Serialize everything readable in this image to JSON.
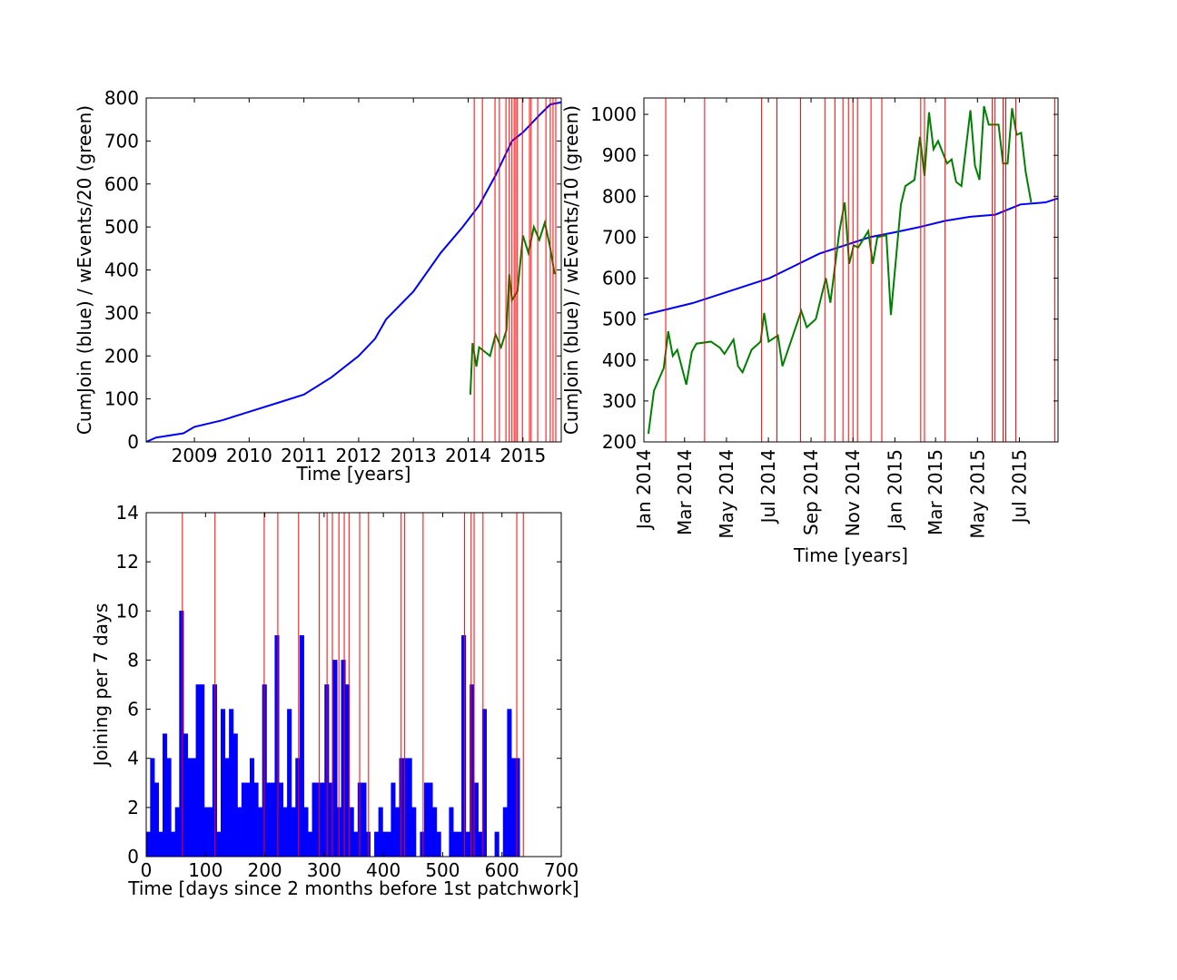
{
  "chart_data": [
    {
      "type": "line",
      "xlabel": "Time [years]",
      "ylabel": "CumJoin (blue) / wEvents/20 (green)",
      "xlim": [
        2008.12,
        2015.7
      ],
      "ylim": [
        0,
        800
      ],
      "xticks": [
        2009,
        2010,
        2011,
        2012,
        2013,
        2014,
        2015
      ],
      "yticks": [
        0,
        100,
        200,
        300,
        400,
        500,
        600,
        700,
        800
      ],
      "series": [
        {
          "color": "#0000ff",
          "x": [
            2008.12,
            2008.3,
            2008.8,
            2009,
            2009.5,
            2010,
            2010.5,
            2011,
            2011.5,
            2012,
            2012.3,
            2012.5,
            2013,
            2013.5,
            2013.9,
            2014.2,
            2014.5,
            2014.8,
            2015,
            2015.3,
            2015.5,
            2015.7
          ],
          "values": [
            0,
            10,
            20,
            35,
            50,
            70,
            90,
            110,
            150,
            200,
            240,
            285,
            350,
            440,
            500,
            550,
            620,
            700,
            720,
            760,
            785,
            790
          ]
        },
        {
          "color": "#008000",
          "x": [
            2014.04,
            2014.08,
            2014.15,
            2014.2,
            2014.3,
            2014.4,
            2014.5,
            2014.6,
            2014.7,
            2014.75,
            2014.8,
            2014.9,
            2015.0,
            2015.1,
            2015.2,
            2015.3,
            2015.4,
            2015.5,
            2015.58
          ],
          "values": [
            110,
            230,
            175,
            220,
            210,
            200,
            250,
            220,
            260,
            390,
            330,
            350,
            480,
            440,
            500,
            470,
            510,
            450,
            390
          ]
        }
      ],
      "vlines": {
        "color": "#ff0000",
        "x": [
          2014.11,
          2014.26,
          2014.49,
          2014.57,
          2014.69,
          2014.75,
          2014.8,
          2014.84,
          2014.87,
          2014.9,
          2014.99,
          2015.12,
          2015.15,
          2015.27,
          2015.42,
          2015.5,
          2015.55,
          2015.6
        ]
      }
    },
    {
      "type": "line",
      "xlabel": "Time [years]",
      "ylabel": "CumJoin (blue) / wEvents/10 (green)",
      "xlim": [
        2014.0,
        2015.65
      ],
      "ylim": [
        200,
        1040
      ],
      "xtick_rotation": 90,
      "xticks": [
        {
          "value": 2014.0,
          "label": "Jan 2014"
        },
        {
          "value": 2014.162,
          "label": "Mar 2014"
        },
        {
          "value": 2014.329,
          "label": "May 2014"
        },
        {
          "value": 2014.496,
          "label": "Jul 2014"
        },
        {
          "value": 2014.666,
          "label": "Sep 2014"
        },
        {
          "value": 2014.833,
          "label": "Nov 2014"
        },
        {
          "value": 2015.0,
          "label": "Jan 2015"
        },
        {
          "value": 2015.162,
          "label": "Mar 2015"
        },
        {
          "value": 2015.329,
          "label": "May 2015"
        },
        {
          "value": 2015.496,
          "label": "Jul 2015"
        }
      ],
      "yticks": [
        200,
        300,
        400,
        500,
        600,
        700,
        800,
        900,
        1000
      ],
      "series": [
        {
          "color": "#0000ff",
          "x": [
            2014.0,
            2014.1,
            2014.2,
            2014.3,
            2014.4,
            2014.5,
            2014.6,
            2014.7,
            2014.8,
            2014.9,
            2015.0,
            2015.1,
            2015.2,
            2015.3,
            2015.4,
            2015.5,
            2015.6,
            2015.65
          ],
          "values": [
            510,
            525,
            540,
            560,
            580,
            600,
            630,
            660,
            680,
            700,
            712,
            725,
            740,
            750,
            755,
            780,
            785,
            795
          ]
        },
        {
          "color": "#008000",
          "x": [
            2014.018,
            2014.04,
            2014.079,
            2014.097,
            2014.115,
            2014.133,
            2014.169,
            2014.191,
            2014.209,
            2014.267,
            2014.303,
            2014.321,
            2014.357,
            2014.375,
            2014.393,
            2014.429,
            2014.465,
            2014.479,
            2014.497,
            2014.534,
            2014.552,
            2014.591,
            2014.627,
            2014.649,
            2014.685,
            2014.725,
            2014.743,
            2014.779,
            2014.8,
            2014.818,
            2014.836,
            2014.854,
            2014.894,
            2014.912,
            2014.93,
            2014.966,
            2014.984,
            2015.024,
            2015.042,
            2015.078,
            2015.1,
            2015.118,
            2015.136,
            2015.154,
            2015.172,
            2015.208,
            2015.226,
            2015.244,
            2015.265,
            2015.301,
            2015.319,
            2015.337,
            2015.355,
            2015.374,
            2015.413,
            2015.431,
            2015.449,
            2015.467,
            2015.485,
            2015.503,
            2015.521,
            2015.543
          ],
          "values": [
            220,
            325,
            380,
            470,
            410,
            425,
            340,
            420,
            440,
            445,
            430,
            415,
            450,
            385,
            370,
            425,
            445,
            515,
            445,
            460,
            385,
            455,
            520,
            480,
            500,
            600,
            540,
            715,
            785,
            635,
            680,
            675,
            715,
            635,
            700,
            705,
            510,
            780,
            825,
            840,
            945,
            850,
            1005,
            915,
            935,
            880,
            890,
            835,
            825,
            1010,
            875,
            840,
            1020,
            975,
            975,
            880,
            880,
            1015,
            950,
            955,
            860,
            785
          ]
        }
      ],
      "vlines": {
        "color": "#ff0000",
        "x": [
          2014.087,
          2014.242,
          2014.469,
          2014.53,
          2014.624,
          2014.721,
          2014.761,
          2014.793,
          2014.815,
          2014.833,
          2014.851,
          2014.905,
          2014.948,
          2015.103,
          2015.118,
          2015.2,
          2015.388,
          2015.399,
          2015.431,
          2015.442,
          2015.482,
          2015.637
        ]
      }
    },
    {
      "type": "histogram",
      "xlabel": "Time [days since 2 months before 1st patchwork]",
      "ylabel": "Joining per 7 days",
      "xlim": [
        0,
        700
      ],
      "ylim": [
        0,
        14
      ],
      "xticks": [
        0,
        100,
        200,
        300,
        400,
        500,
        600,
        700
      ],
      "yticks": [
        0,
        2,
        4,
        6,
        8,
        10,
        12,
        14
      ],
      "color": "#0000ff",
      "bins": [
        0,
        7,
        14,
        21,
        28,
        35,
        42,
        49,
        56,
        63,
        70,
        77,
        84,
        91,
        98,
        105,
        112,
        119,
        126,
        133,
        140,
        147,
        154,
        161,
        168,
        175,
        182,
        189,
        196,
        203,
        210,
        217,
        224,
        231,
        238,
        245,
        252,
        259,
        266,
        273,
        280,
        287,
        294,
        301,
        308,
        315,
        322,
        329,
        336,
        343,
        350,
        357,
        364,
        371,
        378,
        385,
        392,
        399,
        406,
        413,
        420,
        427,
        434,
        441,
        448,
        455,
        462,
        469,
        476,
        483,
        490,
        497,
        504,
        511,
        518,
        525,
        532,
        539,
        546,
        553,
        560,
        567,
        574,
        581,
        588,
        595,
        602,
        609,
        616,
        623,
        630
      ],
      "values": [
        1,
        4,
        3,
        1,
        5,
        4,
        1,
        2,
        10,
        5,
        4,
        4,
        7,
        7,
        2,
        2,
        7,
        1,
        6,
        4,
        6,
        5,
        2,
        3,
        3,
        4,
        3,
        2,
        7,
        3,
        3,
        9,
        3,
        2,
        6,
        2,
        4,
        9,
        2,
        1,
        3,
        3,
        3,
        7,
        3,
        8,
        2,
        8,
        7,
        2,
        1,
        3,
        3,
        1,
        0,
        1,
        2,
        1,
        1,
        3,
        2,
        4,
        4,
        4,
        2,
        0,
        1,
        3,
        3,
        2,
        1,
        0,
        0,
        2,
        1,
        1,
        9,
        1,
        7,
        3,
        1,
        6,
        0,
        0,
        1,
        0,
        2,
        6,
        4,
        4
      ],
      "vlines": {
        "color": "#ff0000",
        "x": [
          61,
          116,
          199,
          222,
          257,
          292,
          305,
          314,
          325,
          334,
          342,
          360,
          375,
          430,
          436,
          467,
          537,
          548,
          553,
          568,
          625,
          636
        ]
      }
    }
  ]
}
